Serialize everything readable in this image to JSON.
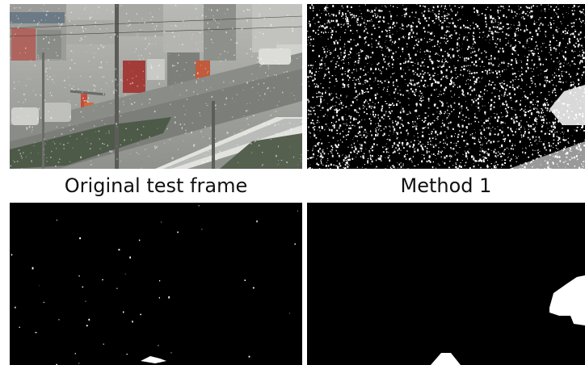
{
  "captions": {
    "original": "Original test frame",
    "method1": "Method 1"
  }
}
